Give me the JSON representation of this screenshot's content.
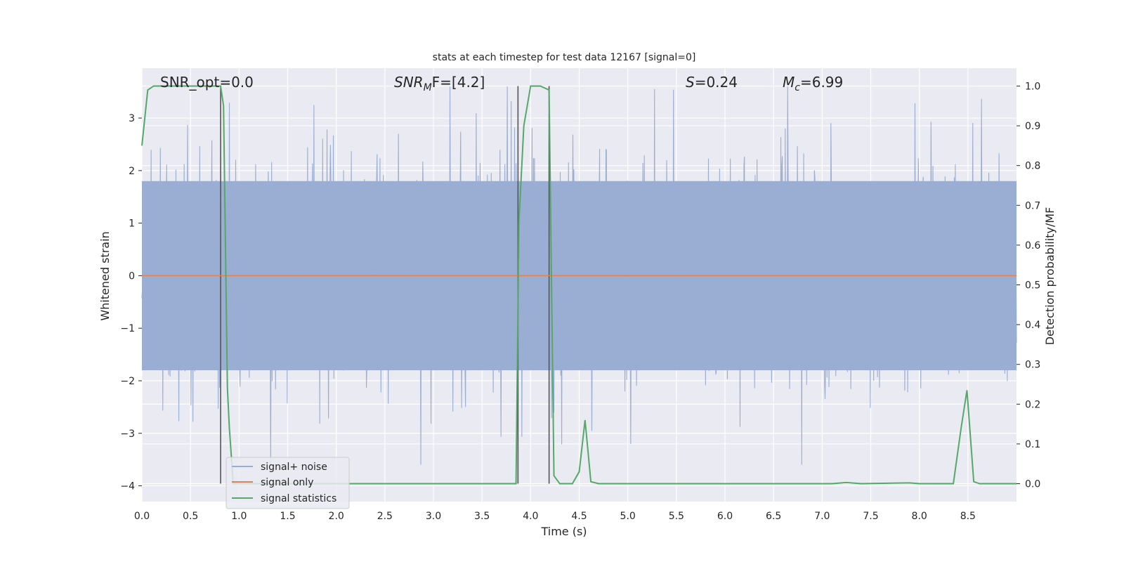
{
  "chart_data": {
    "type": "line",
    "title": "stats at each timestep for test data 12167 [signal=0]",
    "xlabel": "Time (s)",
    "ylabel": "Whitened strain",
    "y2label": "Detection probability/MF",
    "xlim": [
      0,
      9.0
    ],
    "ylim": [
      -4.3,
      3.95
    ],
    "y2lim": [
      -0.045,
      1.045
    ],
    "x_ticks": [
      "0.0",
      "0.5",
      "1.0",
      "1.5",
      "2.0",
      "2.5",
      "3.0",
      "3.5",
      "4.0",
      "4.5",
      "5.0",
      "5.5",
      "6.0",
      "6.5",
      "7.0",
      "7.5",
      "8.0",
      "8.5"
    ],
    "y_ticks": [
      "3",
      "2",
      "1",
      "0",
      "−1",
      "−2",
      "−3",
      "−4"
    ],
    "y2_ticks": [
      "1.0",
      "0.9",
      "0.8",
      "0.7",
      "0.6",
      "0.5",
      "0.4",
      "0.3",
      "0.2",
      "0.1",
      "0.0"
    ],
    "grid": true,
    "legend_position": "lower-left",
    "annotations": {
      "snr_opt": "SNR_opt=0.0",
      "snr_mf_sym": "SNR",
      "snr_mf_sub": "M",
      "snr_mf_rest": "F=[4.2]",
      "s_sym": "S",
      "s_val": "=0.24",
      "mc_sym": "M",
      "mc_sub": "c",
      "mc_val": "=6.99"
    },
    "vertical_markers_x": [
      0.81,
      3.87,
      4.19
    ],
    "series": [
      {
        "name": "signal+ noise",
        "color": "#9aaed3",
        "description": "whitened noise, approx. Gaussian, envelope roughly between -2 and +2.2 with spikes up to about ±3.6",
        "band": [
          -1.8,
          1.8
        ],
        "spike_max": 3.6,
        "spike_min": -3.6
      },
      {
        "name": "signal only",
        "color": "#dd8452",
        "x": [
          0,
          9.0
        ],
        "y": [
          0,
          0
        ]
      },
      {
        "name": "signal statistics",
        "color": "#55a868",
        "axis": "right",
        "x": [
          0.0,
          0.06,
          0.12,
          0.81,
          0.84,
          0.88,
          0.9,
          0.94,
          1.0,
          3.85,
          3.88,
          3.93,
          4.0,
          4.1,
          4.19,
          4.24,
          4.3,
          4.43,
          4.5,
          4.56,
          4.62,
          4.7,
          7.1,
          7.25,
          7.4,
          7.9,
          8.0,
          8.35,
          8.43,
          8.49,
          8.56,
          8.62,
          9.0
        ],
        "y": [
          0.85,
          0.99,
          1.0,
          1.0,
          0.95,
          0.24,
          0.14,
          0.0,
          0.0,
          0.0,
          0.66,
          0.9,
          1.0,
          1.0,
          0.99,
          0.02,
          0.0,
          0.0,
          0.03,
          0.16,
          0.005,
          0.0,
          0.0,
          0.003,
          0.0,
          0.002,
          0.0,
          0.0,
          0.14,
          0.235,
          0.005,
          0.0,
          0.0
        ]
      }
    ]
  }
}
